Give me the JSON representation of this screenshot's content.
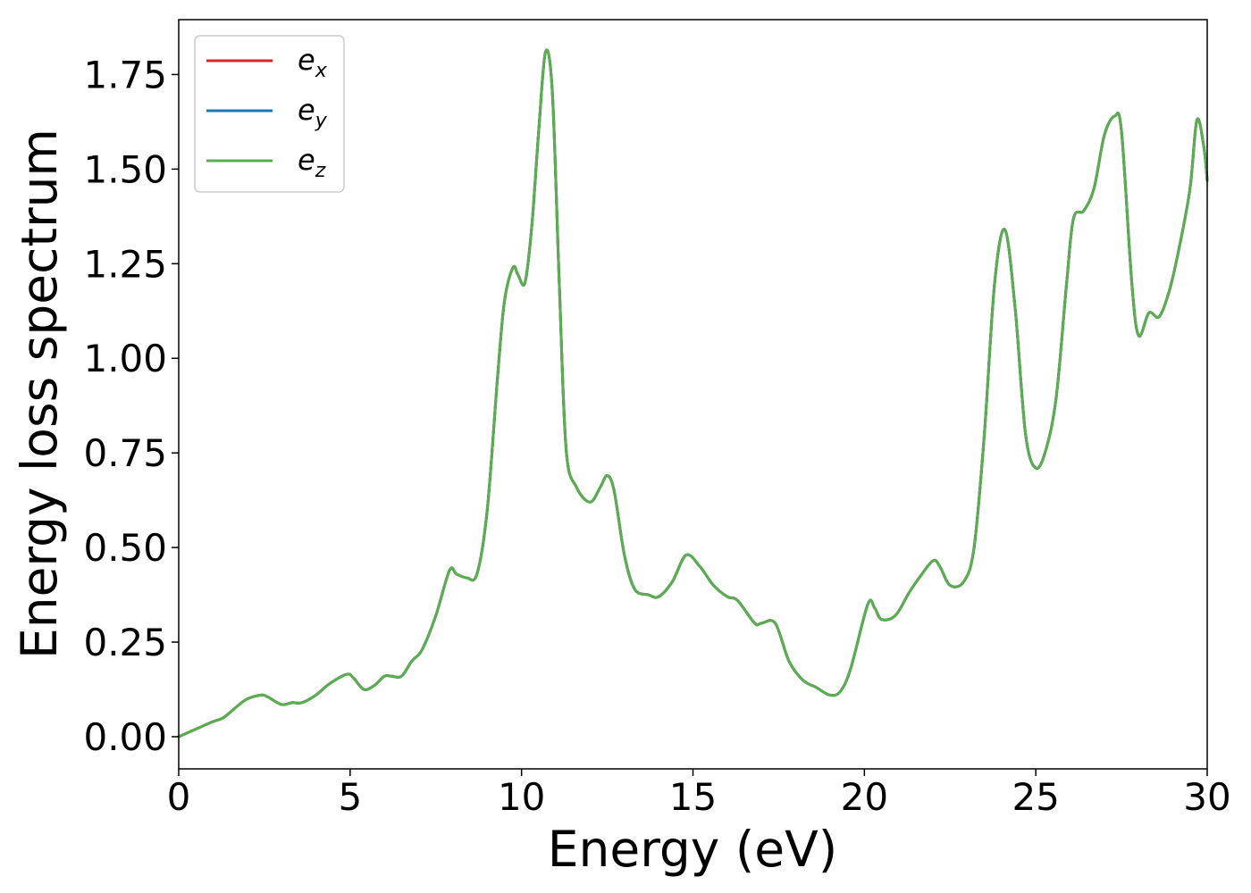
{
  "chart_data": {
    "type": "line",
    "xlabel": "Energy (eV)",
    "ylabel": "Energy loss spectrum",
    "xlim": [
      0,
      30
    ],
    "ylim": [
      -0.085,
      1.895
    ],
    "xticks": [
      0,
      5,
      10,
      15,
      20,
      25,
      30
    ],
    "xtick_labels": [
      "0",
      "5",
      "10",
      "15",
      "20",
      "25",
      "30"
    ],
    "yticks": [
      0.0,
      0.25,
      0.5,
      0.75,
      1.0,
      1.25,
      1.5,
      1.75
    ],
    "ytick_labels": [
      "0.00",
      "0.25",
      "0.50",
      "0.75",
      "1.00",
      "1.25",
      "1.50",
      "1.75"
    ],
    "grid": false,
    "legend_position": "top-left",
    "x": [
      0,
      0.5,
      1.0,
      1.3,
      1.7,
      2.0,
      2.4,
      2.6,
      3.0,
      3.3,
      3.6,
      4.0,
      4.4,
      4.9,
      5.1,
      5.4,
      5.7,
      6.0,
      6.2,
      6.5,
      6.8,
      7.1,
      7.5,
      7.9,
      8.1,
      8.4,
      8.7,
      9.0,
      9.3,
      9.5,
      9.75,
      9.9,
      10.1,
      10.3,
      10.5,
      10.7,
      10.9,
      11.1,
      11.3,
      11.6,
      12.0,
      12.3,
      12.5,
      12.7,
      13.0,
      13.3,
      13.7,
      14.0,
      14.4,
      14.8,
      15.2,
      15.6,
      16.0,
      16.3,
      16.8,
      17.0,
      17.4,
      17.8,
      18.2,
      18.6,
      19.0,
      19.3,
      19.6,
      20.1,
      20.3,
      20.5,
      20.9,
      21.3,
      21.6,
      22.0,
      22.2,
      22.5,
      22.9,
      23.2,
      23.5,
      23.8,
      24.1,
      24.4,
      24.7,
      25.0,
      25.3,
      25.6,
      25.9,
      26.1,
      26.4,
      26.7,
      27.0,
      27.3,
      27.5,
      27.8,
      28.0,
      28.3,
      28.6,
      28.9,
      29.2,
      29.5,
      29.7,
      29.9,
      30.0
    ],
    "series": [
      {
        "name": "e_x",
        "color": "#d62728",
        "values": [
          0.0,
          0.02,
          0.04,
          0.05,
          0.08,
          0.1,
          0.11,
          0.105,
          0.085,
          0.09,
          0.09,
          0.11,
          0.14,
          0.165,
          0.155,
          0.125,
          0.135,
          0.16,
          0.16,
          0.16,
          0.2,
          0.23,
          0.32,
          0.44,
          0.43,
          0.42,
          0.43,
          0.6,
          0.95,
          1.15,
          1.24,
          1.22,
          1.2,
          1.35,
          1.6,
          1.81,
          1.7,
          1.2,
          0.76,
          0.66,
          0.62,
          0.66,
          0.69,
          0.65,
          0.48,
          0.39,
          0.375,
          0.37,
          0.41,
          0.48,
          0.45,
          0.4,
          0.37,
          0.36,
          0.3,
          0.3,
          0.3,
          0.2,
          0.15,
          0.13,
          0.11,
          0.12,
          0.18,
          0.35,
          0.34,
          0.31,
          0.32,
          0.38,
          0.42,
          0.465,
          0.45,
          0.4,
          0.41,
          0.5,
          0.8,
          1.2,
          1.34,
          1.13,
          0.8,
          0.71,
          0.76,
          0.9,
          1.2,
          1.37,
          1.39,
          1.45,
          1.59,
          1.64,
          1.6,
          1.2,
          1.06,
          1.12,
          1.11,
          1.18,
          1.3,
          1.45,
          1.63,
          1.56,
          1.47
        ]
      },
      {
        "name": "e_y",
        "color": "#1f77b4",
        "values": [
          0.0,
          0.02,
          0.04,
          0.05,
          0.08,
          0.1,
          0.11,
          0.105,
          0.085,
          0.09,
          0.09,
          0.11,
          0.14,
          0.165,
          0.155,
          0.125,
          0.135,
          0.16,
          0.16,
          0.16,
          0.2,
          0.23,
          0.32,
          0.44,
          0.43,
          0.42,
          0.43,
          0.6,
          0.95,
          1.15,
          1.24,
          1.22,
          1.2,
          1.35,
          1.6,
          1.81,
          1.7,
          1.2,
          0.76,
          0.66,
          0.62,
          0.66,
          0.69,
          0.65,
          0.48,
          0.39,
          0.375,
          0.37,
          0.41,
          0.48,
          0.45,
          0.4,
          0.37,
          0.36,
          0.3,
          0.3,
          0.3,
          0.2,
          0.15,
          0.13,
          0.11,
          0.12,
          0.18,
          0.35,
          0.34,
          0.31,
          0.32,
          0.38,
          0.42,
          0.465,
          0.45,
          0.4,
          0.41,
          0.5,
          0.8,
          1.2,
          1.34,
          1.13,
          0.8,
          0.71,
          0.76,
          0.9,
          1.2,
          1.37,
          1.39,
          1.45,
          1.59,
          1.64,
          1.6,
          1.2,
          1.06,
          1.12,
          1.11,
          1.18,
          1.3,
          1.45,
          1.63,
          1.56,
          1.47
        ]
      },
      {
        "name": "e_z",
        "color": "#5aae4f",
        "values": [
          0.0,
          0.02,
          0.04,
          0.05,
          0.08,
          0.1,
          0.11,
          0.105,
          0.085,
          0.09,
          0.09,
          0.11,
          0.14,
          0.165,
          0.155,
          0.125,
          0.135,
          0.16,
          0.16,
          0.16,
          0.2,
          0.23,
          0.32,
          0.44,
          0.43,
          0.42,
          0.43,
          0.6,
          0.95,
          1.15,
          1.24,
          1.22,
          1.2,
          1.35,
          1.6,
          1.81,
          1.7,
          1.2,
          0.76,
          0.66,
          0.62,
          0.66,
          0.69,
          0.65,
          0.48,
          0.39,
          0.375,
          0.37,
          0.41,
          0.48,
          0.45,
          0.4,
          0.37,
          0.36,
          0.3,
          0.3,
          0.3,
          0.2,
          0.15,
          0.13,
          0.11,
          0.12,
          0.18,
          0.35,
          0.34,
          0.31,
          0.32,
          0.38,
          0.42,
          0.465,
          0.45,
          0.4,
          0.41,
          0.5,
          0.8,
          1.2,
          1.34,
          1.13,
          0.8,
          0.71,
          0.76,
          0.9,
          1.2,
          1.37,
          1.39,
          1.45,
          1.59,
          1.64,
          1.6,
          1.2,
          1.06,
          1.12,
          1.11,
          1.18,
          1.3,
          1.45,
          1.63,
          1.56,
          1.47
        ]
      }
    ],
    "legend": [
      {
        "base": "e",
        "sub": "x",
        "color": "#d62728"
      },
      {
        "base": "e",
        "sub": "y",
        "color": "#1f77b4"
      },
      {
        "base": "e",
        "sub": "z",
        "color": "#5aae4f"
      }
    ]
  }
}
